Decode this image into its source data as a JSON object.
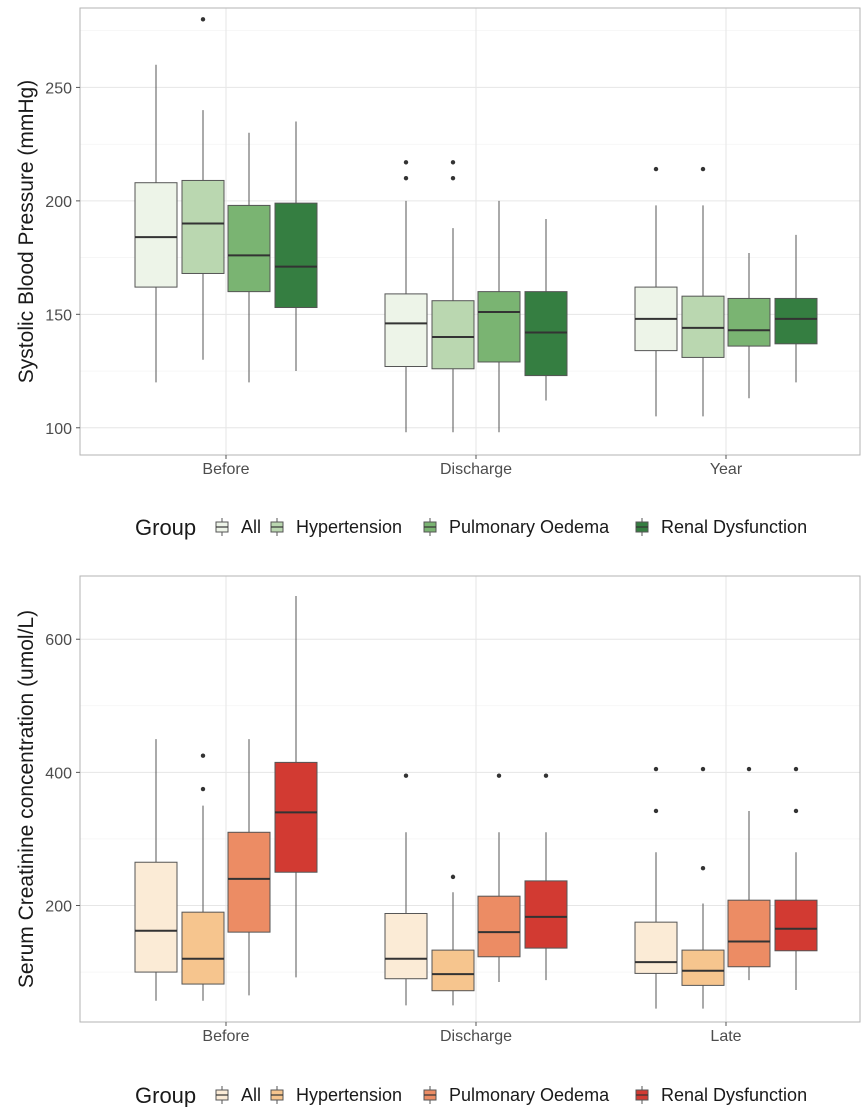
{
  "chart_data": [
    {
      "type": "box",
      "title": "",
      "ylabel": "Systolic Blood Pressure (mmHg)",
      "xlabel": "",
      "ylim": [
        88,
        285
      ],
      "yticks": [
        100,
        150,
        200,
        250
      ],
      "categories": [
        "Before",
        "Discharge",
        "Year"
      ],
      "grid": true,
      "legend": {
        "title": "Group",
        "position": "bottom"
      },
      "series": [
        {
          "name": "All",
          "color": "#edf4e8",
          "boxes": [
            {
              "q1": 162,
              "median": 184,
              "q3": 208,
              "lower": 120,
              "upper": 260,
              "outliers": []
            },
            {
              "q1": 127,
              "median": 146,
              "q3": 159,
              "lower": 98,
              "upper": 200,
              "outliers": [
                210,
                217
              ]
            },
            {
              "q1": 134,
              "median": 148,
              "q3": 162,
              "lower": 105,
              "upper": 198,
              "outliers": [
                214
              ]
            }
          ]
        },
        {
          "name": "Hypertension",
          "color": "#bad7b0",
          "boxes": [
            {
              "q1": 168,
              "median": 190,
              "q3": 209,
              "lower": 130,
              "upper": 240,
              "outliers": [
                280
              ]
            },
            {
              "q1": 126,
              "median": 140,
              "q3": 156,
              "lower": 98,
              "upper": 188,
              "outliers": [
                210,
                217
              ]
            },
            {
              "q1": 131,
              "median": 144,
              "q3": 158,
              "lower": 105,
              "upper": 198,
              "outliers": [
                214
              ]
            }
          ]
        },
        {
          "name": "Pulmonary Oedema",
          "color": "#7ab472",
          "boxes": [
            {
              "q1": 160,
              "median": 176,
              "q3": 198,
              "lower": 120,
              "upper": 230,
              "outliers": []
            },
            {
              "q1": 129,
              "median": 151,
              "q3": 160,
              "lower": 98,
              "upper": 200,
              "outliers": []
            },
            {
              "q1": 136,
              "median": 143,
              "q3": 157,
              "lower": 113,
              "upper": 177,
              "outliers": []
            }
          ]
        },
        {
          "name": "Renal Dysfunction",
          "color": "#357e41",
          "boxes": [
            {
              "q1": 153,
              "median": 171,
              "q3": 199,
              "lower": 125,
              "upper": 235,
              "outliers": []
            },
            {
              "q1": 123,
              "median": 142,
              "q3": 160,
              "lower": 112,
              "upper": 192,
              "outliers": []
            },
            {
              "q1": 137,
              "median": 148,
              "q3": 157,
              "lower": 120,
              "upper": 185,
              "outliers": []
            }
          ]
        }
      ]
    },
    {
      "type": "box",
      "title": "",
      "ylabel": "Serum Creatinine concentration (umol/L)",
      "xlabel": "",
      "ylim": [
        25,
        695
      ],
      "yticks": [
        200,
        400,
        600
      ],
      "categories": [
        "Before",
        "Discharge",
        "Late"
      ],
      "grid": true,
      "legend": {
        "title": "Group",
        "position": "bottom"
      },
      "series": [
        {
          "name": "All",
          "color": "#fbebd6",
          "boxes": [
            {
              "q1": 100,
              "median": 162,
              "q3": 265,
              "lower": 57,
              "upper": 450,
              "outliers": []
            },
            {
              "q1": 90,
              "median": 120,
              "q3": 188,
              "lower": 50,
              "upper": 310,
              "outliers": [
                395
              ]
            },
            {
              "q1": 98,
              "median": 115,
              "q3": 175,
              "lower": 45,
              "upper": 280,
              "outliers": [
                342,
                405
              ]
            }
          ]
        },
        {
          "name": "Hypertension",
          "color": "#f6c58e",
          "boxes": [
            {
              "q1": 82,
              "median": 120,
              "q3": 190,
              "lower": 57,
              "upper": 350,
              "outliers": [
                375,
                425
              ]
            },
            {
              "q1": 72,
              "median": 97,
              "q3": 133,
              "lower": 50,
              "upper": 220,
              "outliers": [
                243
              ]
            },
            {
              "q1": 80,
              "median": 102,
              "q3": 133,
              "lower": 45,
              "upper": 203,
              "outliers": [
                256,
                405
              ]
            }
          ]
        },
        {
          "name": "Pulmonary Oedema",
          "color": "#ec8c64",
          "boxes": [
            {
              "q1": 160,
              "median": 240,
              "q3": 310,
              "lower": 65,
              "upper": 450,
              "outliers": []
            },
            {
              "q1": 123,
              "median": 160,
              "q3": 214,
              "lower": 85,
              "upper": 310,
              "outliers": [
                395
              ]
            },
            {
              "q1": 108,
              "median": 146,
              "q3": 208,
              "lower": 88,
              "upper": 342,
              "outliers": [
                405
              ]
            }
          ]
        },
        {
          "name": "Renal Dysfunction",
          "color": "#d23a32",
          "boxes": [
            {
              "q1": 250,
              "median": 340,
              "q3": 415,
              "lower": 92,
              "upper": 665,
              "outliers": []
            },
            {
              "q1": 136,
              "median": 183,
              "q3": 237,
              "lower": 88,
              "upper": 310,
              "outliers": [
                395
              ]
            },
            {
              "q1": 132,
              "median": 165,
              "q3": 208,
              "lower": 73,
              "upper": 280,
              "outliers": [
                342,
                405
              ]
            }
          ]
        }
      ]
    }
  ]
}
